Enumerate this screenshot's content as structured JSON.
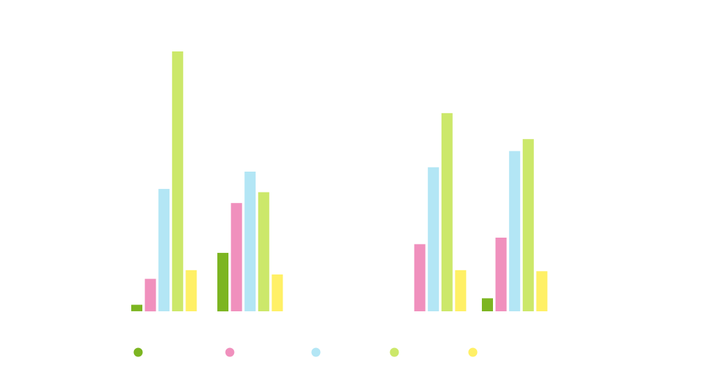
{
  "chart_data": {
    "type": "bar",
    "categories": [
      "",
      "",
      "",
      ""
    ],
    "series": [
      {
        "color": "#7cb521",
        "values": [
          0.6,
          5.4,
          0,
          1.2
        ]
      },
      {
        "color": "#f090bd",
        "values": [
          3.0,
          10.0,
          6.2,
          6.8
        ]
      },
      {
        "color": "#b3e6f5",
        "values": [
          11.3,
          12.9,
          13.3,
          14.8
        ]
      },
      {
        "color": "#cce86a",
        "values": [
          24.0,
          11.0,
          18.3,
          15.9
        ]
      },
      {
        "color": "#fff066",
        "values": [
          3.8,
          3.4,
          3.8,
          3.7
        ]
      }
    ],
    "grid": false,
    "legend": "bottom",
    "ylim": [
      0,
      24
    ]
  }
}
